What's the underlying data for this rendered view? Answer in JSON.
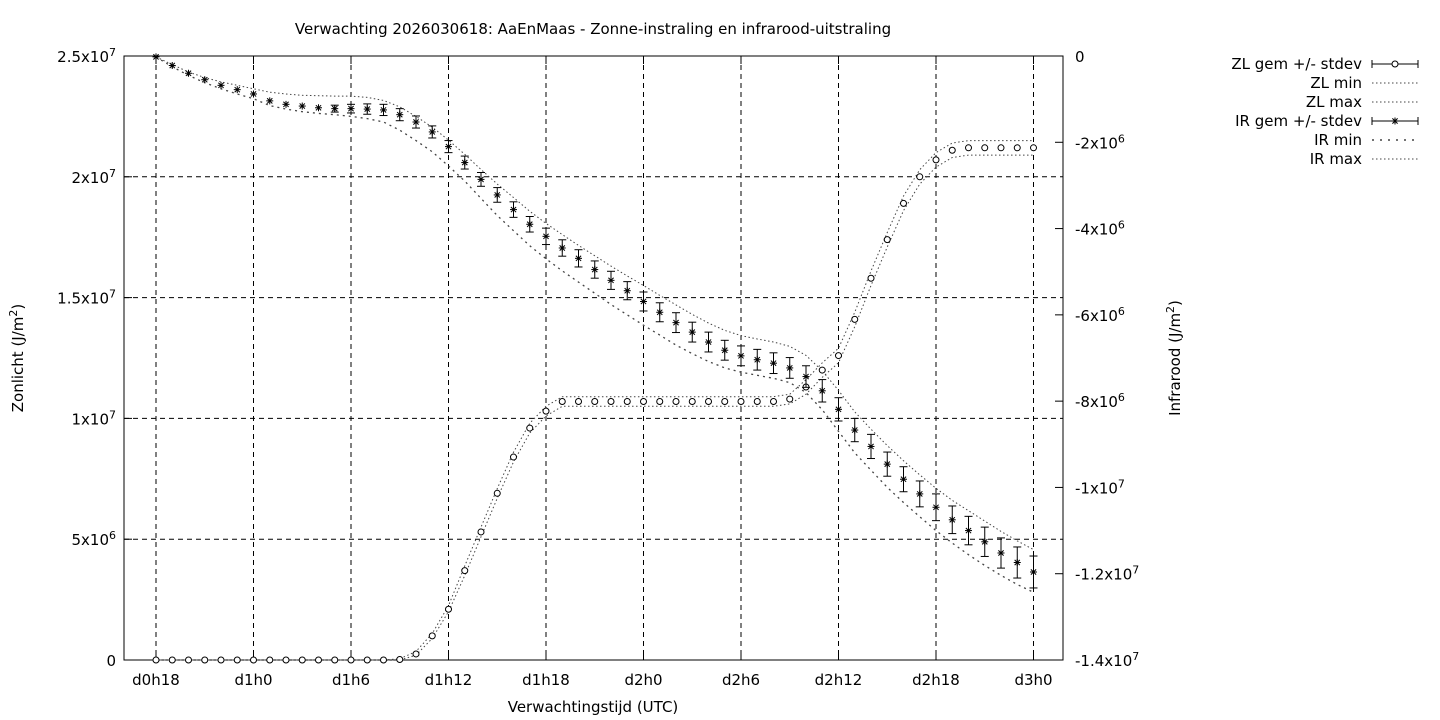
{
  "chart_data": {
    "type": "scatter",
    "title": "Verwachting 2026030618: AaEnMaas - Zonne-instraling en infrarood-uitstraling",
    "xlabel": "Verwachtingstijd (UTC)",
    "ylabel_left": {
      "text": "Zonlicht (J/m",
      "sup": "2",
      "tail": ")"
    },
    "ylabel_right": {
      "text": "Infrarood (J/m",
      "sup": "2",
      "tail": ")"
    },
    "x_unit": "hours since d0h18",
    "xlim": [
      -2,
      52
    ],
    "ylim_left": [
      0,
      25000000
    ],
    "ylim_right": [
      -14000000,
      0
    ],
    "grid": true,
    "legend_position": "outside-right",
    "x_ticks": [
      {
        "value": 0,
        "label": "d0h18"
      },
      {
        "value": 6,
        "label": "d1h0"
      },
      {
        "value": 12,
        "label": "d1h6"
      },
      {
        "value": 18,
        "label": "d1h12"
      },
      {
        "value": 24,
        "label": "d1h18"
      },
      {
        "value": 30,
        "label": "d2h0"
      },
      {
        "value": 36,
        "label": "d2h6"
      },
      {
        "value": 42,
        "label": "d2h12"
      },
      {
        "value": 48,
        "label": "d2h18"
      },
      {
        "value": 54,
        "label": "d3h0"
      }
    ],
    "y_left_ticks": [
      {
        "value": 0,
        "mant": "0",
        "exp": ""
      },
      {
        "value": 5000000,
        "mant": "5x10",
        "exp": "6"
      },
      {
        "value": 10000000,
        "mant": "1x10",
        "exp": "7"
      },
      {
        "value": 15000000,
        "mant": "1.5x10",
        "exp": "7"
      },
      {
        "value": 20000000,
        "mant": "2x10",
        "exp": "7"
      },
      {
        "value": 25000000,
        "mant": "2.5x10",
        "exp": "7"
      }
    ],
    "y_right_ticks": [
      {
        "value": 0,
        "mant": "0",
        "exp": ""
      },
      {
        "value": -2000000,
        "mant": "-2x10",
        "exp": "6"
      },
      {
        "value": -4000000,
        "mant": "-4x10",
        "exp": "6"
      },
      {
        "value": -6000000,
        "mant": "-6x10",
        "exp": "6"
      },
      {
        "value": -8000000,
        "mant": "-8x10",
        "exp": "6"
      },
      {
        "value": -10000000,
        "mant": "-1x10",
        "exp": "7"
      },
      {
        "value": -12000000,
        "mant": "-1.2x10",
        "exp": "7"
      },
      {
        "value": -14000000,
        "mant": "-1.4x10",
        "exp": "7"
      }
    ],
    "legend": [
      {
        "label": "ZL gem +/- stdev",
        "style": "errorbar-circle"
      },
      {
        "label": "ZL min",
        "style": "dotted"
      },
      {
        "label": "ZL max",
        "style": "dotted"
      },
      {
        "label": "IR gem +/- stdev",
        "style": "errorbar-star"
      },
      {
        "label": "IR min",
        "style": "dotted-sparse"
      },
      {
        "label": "IR max",
        "style": "dotted"
      }
    ],
    "series": [
      {
        "name": "ZL gem +/- stdev",
        "axis": "left",
        "x": [
          0,
          1,
          2,
          3,
          4,
          5,
          6,
          7,
          8,
          9,
          10,
          11,
          12,
          13,
          14,
          15,
          16,
          17,
          18,
          19,
          20,
          21,
          22,
          23,
          24,
          25,
          26,
          27,
          28,
          29,
          30,
          31,
          32,
          33,
          34,
          35,
          36,
          37,
          38,
          39,
          40,
          41,
          42,
          43,
          44,
          45,
          46,
          47,
          48,
          49,
          50,
          51,
          52,
          53,
          54
        ],
        "y": [
          0,
          0,
          0,
          0,
          0,
          0,
          0,
          0,
          0,
          0,
          0,
          0,
          0,
          0,
          0,
          20000,
          250000,
          1000000,
          2100000,
          3700000,
          5300000,
          6900000,
          8400000,
          9600000,
          10300000,
          10700000,
          10700000,
          10700000,
          10700000,
          10700000,
          10700000,
          10700000,
          10700000,
          10700000,
          10700000,
          10700000,
          10700000,
          10700000,
          10700000,
          10800000,
          11300000,
          12000000,
          12600000,
          14100000,
          15800000,
          17400000,
          18900000,
          20000000,
          20700000,
          21100000,
          21200000,
          21200000,
          21200000,
          21200000,
          21200000
        ],
        "stdev": [
          0,
          0,
          0,
          0,
          0,
          0,
          0,
          0,
          0,
          0,
          0,
          0,
          0,
          0,
          0,
          0,
          0,
          0,
          0,
          0,
          0,
          0,
          0,
          0,
          0,
          0,
          0,
          0,
          0,
          0,
          0,
          0,
          0,
          0,
          0,
          0,
          0,
          0,
          0,
          0,
          0,
          0,
          0,
          0,
          0,
          0,
          0,
          0,
          0,
          0,
          0,
          0,
          0,
          0,
          0
        ]
      },
      {
        "name": "ZL min",
        "axis": "left",
        "x": [
          0,
          1,
          2,
          3,
          4,
          5,
          6,
          7,
          8,
          9,
          10,
          11,
          12,
          13,
          14,
          15,
          16,
          17,
          18,
          19,
          20,
          21,
          22,
          23,
          24,
          25,
          26,
          27,
          28,
          29,
          30,
          31,
          32,
          33,
          34,
          35,
          36,
          37,
          38,
          39,
          40,
          41,
          42,
          43,
          44,
          45,
          46,
          47,
          48,
          49,
          50,
          51,
          52,
          53,
          54
        ],
        "y": [
          0,
          0,
          0,
          0,
          0,
          0,
          0,
          0,
          0,
          0,
          0,
          0,
          0,
          0,
          0,
          0,
          200000,
          900000,
          2000000,
          3500000,
          5100000,
          6700000,
          8200000,
          9400000,
          10100000,
          10500000,
          10500000,
          10500000,
          10500000,
          10500000,
          10500000,
          10500000,
          10500000,
          10500000,
          10500000,
          10500000,
          10500000,
          10500000,
          10500000,
          10600000,
          11000000,
          11700000,
          12300000,
          13800000,
          15500000,
          17100000,
          18600000,
          19700000,
          20400000,
          20800000,
          20900000,
          20900000,
          20900000,
          20900000,
          20900000
        ]
      },
      {
        "name": "ZL max",
        "axis": "left",
        "x": [
          0,
          1,
          2,
          3,
          4,
          5,
          6,
          7,
          8,
          9,
          10,
          11,
          12,
          13,
          14,
          15,
          16,
          17,
          18,
          19,
          20,
          21,
          22,
          23,
          24,
          25,
          26,
          27,
          28,
          29,
          30,
          31,
          32,
          33,
          34,
          35,
          36,
          37,
          38,
          39,
          40,
          41,
          42,
          43,
          44,
          45,
          46,
          47,
          48,
          49,
          50,
          51,
          52,
          53,
          54
        ],
        "y": [
          0,
          0,
          0,
          0,
          0,
          0,
          0,
          0,
          0,
          0,
          0,
          0,
          0,
          0,
          0,
          50000,
          350000,
          1100000,
          2250000,
          3900000,
          5500000,
          7100000,
          8600000,
          9800000,
          10500000,
          10900000,
          10900000,
          10900000,
          10900000,
          10900000,
          10900000,
          10900000,
          10900000,
          10900000,
          10900000,
          10900000,
          10900000,
          10900000,
          10900000,
          11000000,
          11600000,
          12300000,
          12900000,
          14400000,
          16100000,
          17700000,
          19200000,
          20300000,
          21000000,
          21400000,
          21500000,
          21500000,
          21500000,
          21500000,
          21500000
        ]
      },
      {
        "name": "IR gem +/- stdev",
        "axis": "right",
        "x": [
          0,
          1,
          2,
          3,
          4,
          5,
          6,
          7,
          8,
          9,
          10,
          11,
          12,
          13,
          14,
          15,
          16,
          17,
          18,
          19,
          20,
          21,
          22,
          23,
          24,
          25,
          26,
          27,
          28,
          29,
          30,
          31,
          32,
          33,
          34,
          35,
          36,
          37,
          38,
          39,
          40,
          41,
          42,
          43,
          44,
          45,
          46,
          47,
          48,
          49,
          50,
          51,
          52,
          53,
          54
        ],
        "y": [
          -20000,
          -220000,
          -400000,
          -550000,
          -680000,
          -780000,
          -880000,
          -1040000,
          -1120000,
          -1160000,
          -1200000,
          -1220000,
          -1220000,
          -1230000,
          -1250000,
          -1360000,
          -1530000,
          -1760000,
          -2100000,
          -2470000,
          -2860000,
          -3220000,
          -3560000,
          -3900000,
          -4180000,
          -4450000,
          -4690000,
          -4950000,
          -5200000,
          -5440000,
          -5690000,
          -5940000,
          -6180000,
          -6400000,
          -6630000,
          -6820000,
          -6950000,
          -7040000,
          -7120000,
          -7230000,
          -7430000,
          -7760000,
          -8190000,
          -8670000,
          -9050000,
          -9460000,
          -9810000,
          -10150000,
          -10460000,
          -10750000,
          -11000000,
          -11260000,
          -11520000,
          -11740000,
          -11960000
        ],
        "stdev": [
          0,
          0,
          0,
          0,
          0,
          0,
          0,
          0,
          0,
          0,
          0,
          80000,
          100000,
          120000,
          130000,
          140000,
          140000,
          140000,
          140000,
          150000,
          160000,
          170000,
          180000,
          180000,
          190000,
          190000,
          200000,
          200000,
          210000,
          210000,
          220000,
          220000,
          230000,
          230000,
          230000,
          230000,
          230000,
          240000,
          240000,
          240000,
          250000,
          260000,
          270000,
          270000,
          280000,
          280000,
          290000,
          300000,
          310000,
          320000,
          330000,
          340000,
          350000,
          360000,
          370000
        ]
      },
      {
        "name": "IR min",
        "axis": "right",
        "x": [
          0,
          1,
          2,
          3,
          4,
          5,
          6,
          7,
          8,
          9,
          10,
          11,
          12,
          13,
          14,
          15,
          16,
          17,
          18,
          19,
          20,
          21,
          22,
          23,
          24,
          25,
          26,
          27,
          28,
          29,
          30,
          31,
          32,
          33,
          34,
          35,
          36,
          37,
          38,
          39,
          40,
          41,
          42,
          43,
          44,
          45,
          46,
          47,
          48,
          49,
          50,
          51,
          52,
          53,
          54
        ],
        "y": [
          -20000,
          -250000,
          -450000,
          -620000,
          -760000,
          -880000,
          -990000,
          -1150000,
          -1230000,
          -1290000,
          -1330000,
          -1360000,
          -1400000,
          -1450000,
          -1530000,
          -1720000,
          -1960000,
          -2220000,
          -2550000,
          -2900000,
          -3300000,
          -3700000,
          -4050000,
          -4400000,
          -4700000,
          -4980000,
          -5240000,
          -5500000,
          -5760000,
          -6000000,
          -6240000,
          -6470000,
          -6700000,
          -6900000,
          -7080000,
          -7230000,
          -7330000,
          -7400000,
          -7470000,
          -7570000,
          -7800000,
          -8200000,
          -8700000,
          -9200000,
          -9600000,
          -10000000,
          -10350000,
          -10680000,
          -11000000,
          -11290000,
          -11560000,
          -11810000,
          -12040000,
          -12250000,
          -12430000
        ]
      },
      {
        "name": "IR max",
        "axis": "right",
        "x": [
          0,
          1,
          2,
          3,
          4,
          5,
          6,
          7,
          8,
          9,
          10,
          11,
          12,
          13,
          14,
          15,
          16,
          17,
          18,
          19,
          20,
          21,
          22,
          23,
          24,
          25,
          26,
          27,
          28,
          29,
          30,
          31,
          32,
          33,
          34,
          35,
          36,
          37,
          38,
          39,
          40,
          41,
          42,
          43,
          44,
          45,
          46,
          47,
          48,
          49,
          50,
          51,
          52,
          53,
          54
        ],
        "y": [
          -20000,
          -200000,
          -370000,
          -500000,
          -600000,
          -680000,
          -760000,
          -840000,
          -880000,
          -910000,
          -920000,
          -930000,
          -930000,
          -960000,
          -1030000,
          -1180000,
          -1400000,
          -1650000,
          -1950000,
          -2280000,
          -2630000,
          -2970000,
          -3280000,
          -3600000,
          -3880000,
          -4140000,
          -4390000,
          -4630000,
          -4870000,
          -5100000,
          -5320000,
          -5550000,
          -5770000,
          -5990000,
          -6190000,
          -6360000,
          -6480000,
          -6560000,
          -6630000,
          -6730000,
          -6940000,
          -7300000,
          -7750000,
          -8250000,
          -8650000,
          -9030000,
          -9380000,
          -9710000,
          -10020000,
          -10300000,
          -10540000,
          -10780000,
          -11020000,
          -11240000,
          -11440000
        ]
      }
    ]
  }
}
